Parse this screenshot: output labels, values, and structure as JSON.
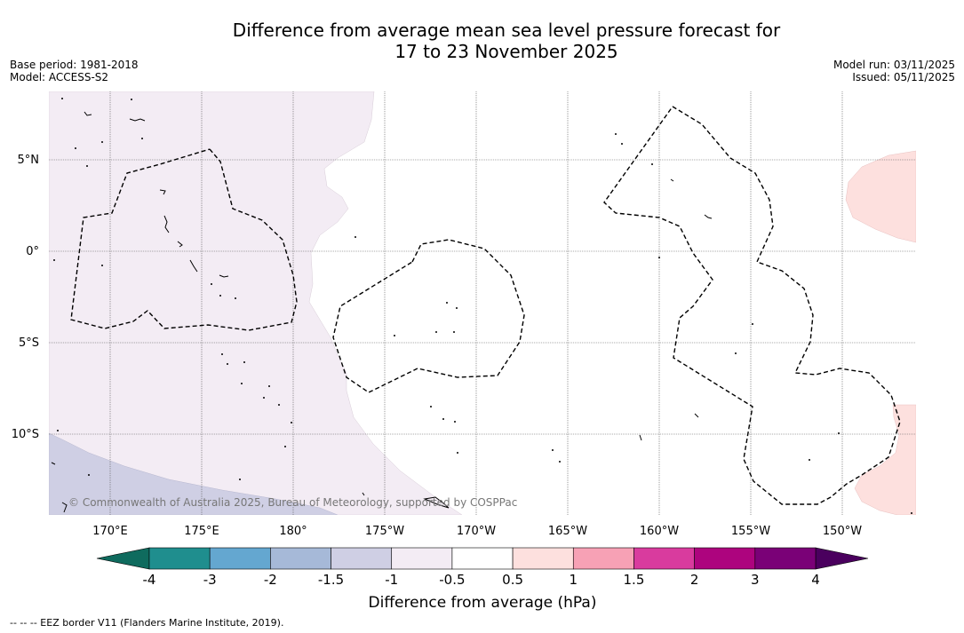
{
  "title": {
    "line1": "Difference from average mean sea level pressure forecast for",
    "line2": "17 to 23 November 2025"
  },
  "meta": {
    "base_period": "Base period: 1981-2018",
    "model": "Model: ACCESS-S2",
    "model_run": "Model run: 03/11/2025",
    "issued": "Issued: 05/11/2025"
  },
  "map": {
    "lat_labels": [
      "5°N",
      "0°",
      "5°S",
      "10°S"
    ],
    "lon_labels": [
      "170°E",
      "175°E",
      "180°",
      "175°W",
      "170°W",
      "165°W",
      "160°W",
      "155°W",
      "150°W"
    ],
    "copyright": "© Commonwealth of Australia 2025, Bureau of Meteorology, supported by COSPPac"
  },
  "colorbar": {
    "ticks": [
      "-4",
      "-3",
      "-2",
      "-1.5",
      "-1",
      "-0.5",
      "0.5",
      "1",
      "1.5",
      "2",
      "3",
      "4"
    ],
    "colors": [
      "#1f8e8e",
      "#64a7d0",
      "#a6b9d8",
      "#cfcfe4",
      "#f3ecf4",
      "#ffffff",
      "#fde0de",
      "#f7a1b5",
      "#d93b9e",
      "#ad047e",
      "#7a0177"
    ],
    "under_color": "#0f6b5e",
    "over_color": "#4a005e",
    "title": "Difference from average (hPa)"
  },
  "legend": "--  --  -- EEZ border V11 (Flanders Marine Institute, 2019)."
}
